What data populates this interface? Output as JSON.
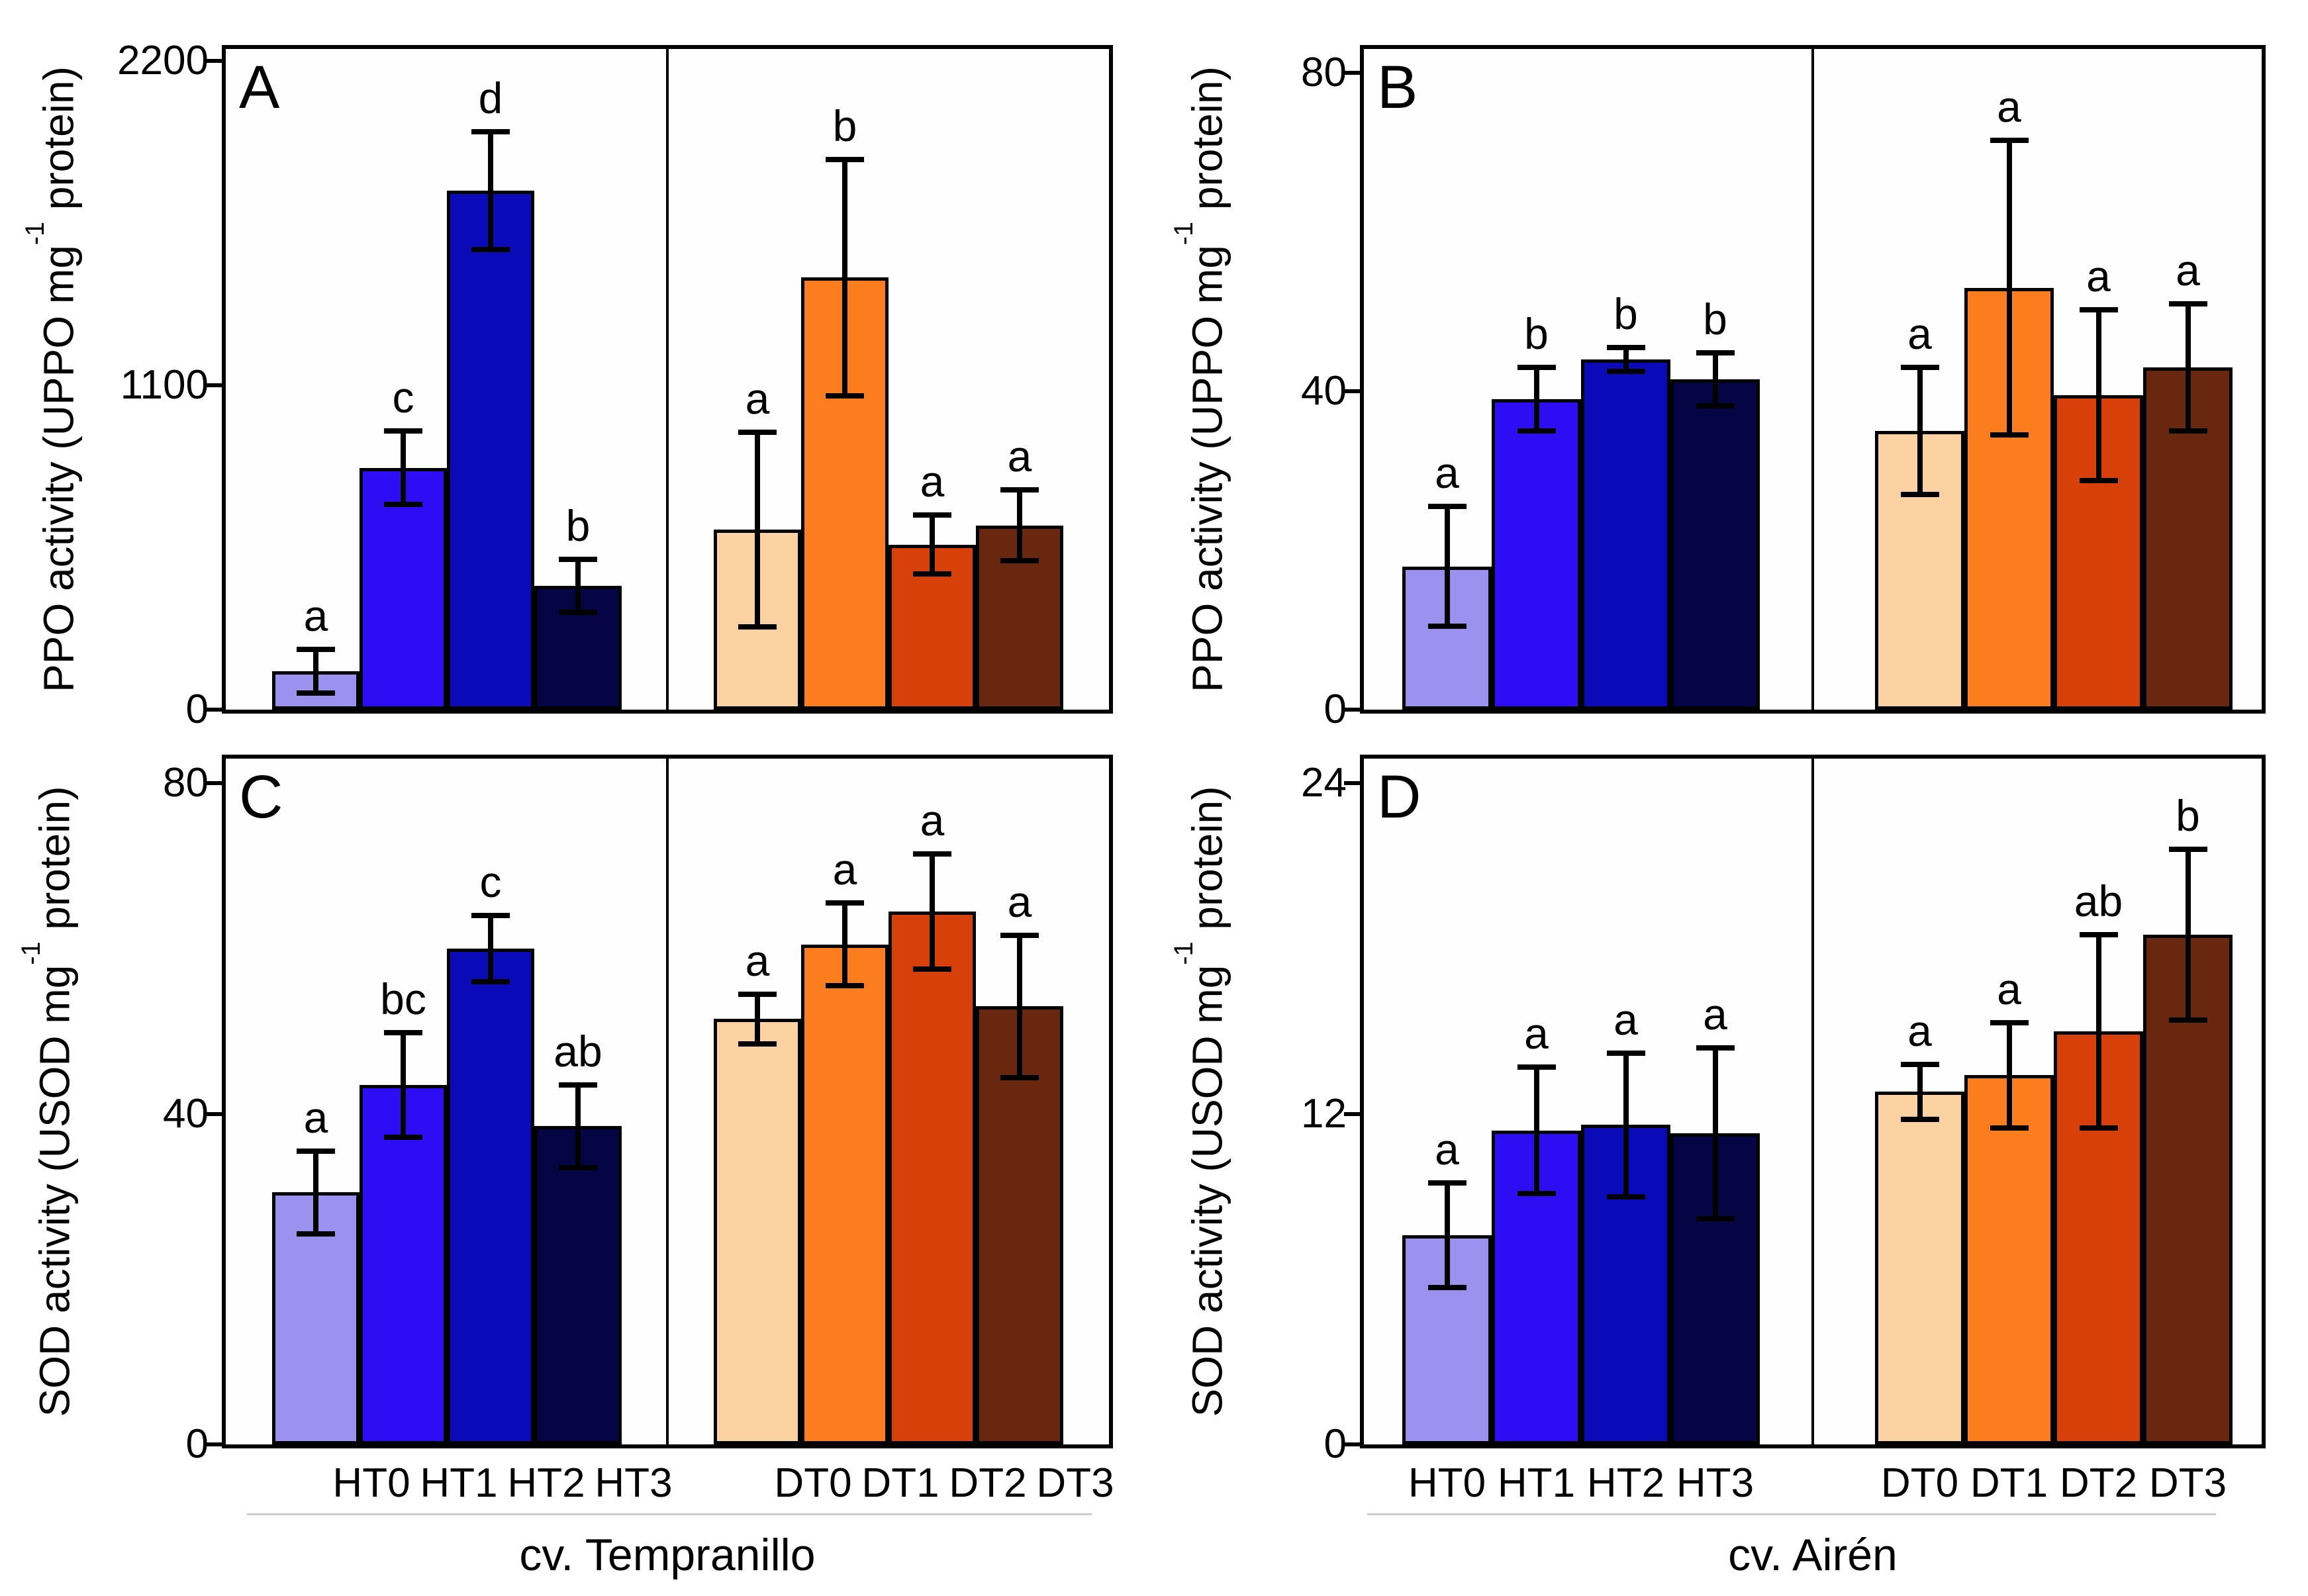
{
  "chart_data": [
    {
      "type": "bar",
      "panel_letter": "A",
      "ylabel": {
        "prefix": "PPO activity (UPPO mg",
        "sup": "-1",
        "suffix": " protein)"
      },
      "xlabel": "",
      "categories": [
        "HT0",
        "HT1",
        "HT2",
        "HT3",
        "DT0",
        "DT1",
        "DT2",
        "DT3"
      ],
      "values": [
        130,
        820,
        1760,
        420,
        610,
        1465,
        560,
        625
      ],
      "errors": [
        75,
        125,
        200,
        90,
        330,
        400,
        100,
        120
      ],
      "sig_letters": [
        "a",
        "c",
        "d",
        "b",
        "a",
        "b",
        "a",
        "a"
      ],
      "bar_colors": [
        "#9a92ee",
        "#2e0cf4",
        "#0a0ab8",
        "#050545",
        "#fcd2a2",
        "#fb7d1e",
        "#d84009",
        "#6a2710"
      ],
      "yticks": [
        0,
        1100,
        2200
      ],
      "ylim": [
        0,
        2240
      ],
      "grid": false,
      "legend": "none"
    },
    {
      "type": "bar",
      "panel_letter": "B",
      "ylabel": {
        "prefix": "PPO activity (UPPO mg",
        "sup": "-1",
        "suffix": " protein)"
      },
      "xlabel": "",
      "categories": [
        "HT0",
        "HT1",
        "HT2",
        "HT3",
        "DT0",
        "DT1",
        "DT2",
        "DT3"
      ],
      "values": [
        18,
        39,
        44,
        41.5,
        35,
        53,
        39.5,
        43
      ],
      "errors": [
        7.5,
        4,
        1.5,
        3.3,
        8,
        18.5,
        10.7,
        8
      ],
      "sig_letters": [
        "a",
        "b",
        "b",
        "b",
        "a",
        "a",
        "a",
        "a"
      ],
      "bar_colors": [
        "#9a92ee",
        "#2e0cf4",
        "#0a0ab8",
        "#050545",
        "#fcd2a2",
        "#fb7d1e",
        "#d84009",
        "#6a2710"
      ],
      "yticks": [
        0,
        40,
        80
      ],
      "ylim": [
        0,
        83
      ],
      "grid": false,
      "legend": "none"
    },
    {
      "type": "bar",
      "panel_letter": "C",
      "ylabel": {
        "prefix": "SOD activity (USOD mg",
        "sup": "-1",
        "suffix": " protein)"
      },
      "xlabel": "cv. Tempranillo",
      "categories": [
        "HT0",
        "HT1",
        "HT2",
        "HT3",
        "DT0",
        "DT1",
        "DT2",
        "DT3"
      ],
      "values": [
        30.5,
        43.5,
        60,
        38.5,
        51.5,
        60.5,
        64.5,
        53
      ],
      "errors": [
        5,
        6.3,
        4,
        5,
        3,
        5,
        7,
        8.6
      ],
      "sig_letters": [
        "a",
        "bc",
        "c",
        "ab",
        "a",
        "a",
        "a",
        "a"
      ],
      "bar_colors": [
        "#9a92ee",
        "#2e0cf4",
        "#0a0ab8",
        "#050545",
        "#fcd2a2",
        "#fb7d1e",
        "#d84009",
        "#6a2710"
      ],
      "yticks": [
        0,
        40,
        80
      ],
      "ylim": [
        0,
        83
      ],
      "grid": false,
      "legend": "none"
    },
    {
      "type": "bar",
      "panel_letter": "D",
      "ylabel": {
        "prefix": "SOD activity (USOD mg",
        "sup": "-1",
        "suffix": " protein)"
      },
      "xlabel": "cv. Airén",
      "categories": [
        "HT0",
        "HT1",
        "HT2",
        "HT3",
        "DT0",
        "DT1",
        "DT2",
        "DT3"
      ],
      "values": [
        7.6,
        11.4,
        11.6,
        11.3,
        12.8,
        13.4,
        15,
        18.5
      ],
      "errors": [
        1.9,
        2.3,
        2.6,
        3.1,
        1,
        1.9,
        3.5,
        3.1
      ],
      "sig_letters": [
        "a",
        "a",
        "a",
        "a",
        "a",
        "a",
        "ab",
        "b"
      ],
      "bar_colors": [
        "#9a92ee",
        "#2e0cf4",
        "#0a0ab8",
        "#050545",
        "#fcd2a2",
        "#fb7d1e",
        "#d84009",
        "#6a2710"
      ],
      "yticks": [
        0,
        12,
        24
      ],
      "ylim": [
        0,
        24.9
      ],
      "grid": false,
      "legend": "none"
    }
  ]
}
